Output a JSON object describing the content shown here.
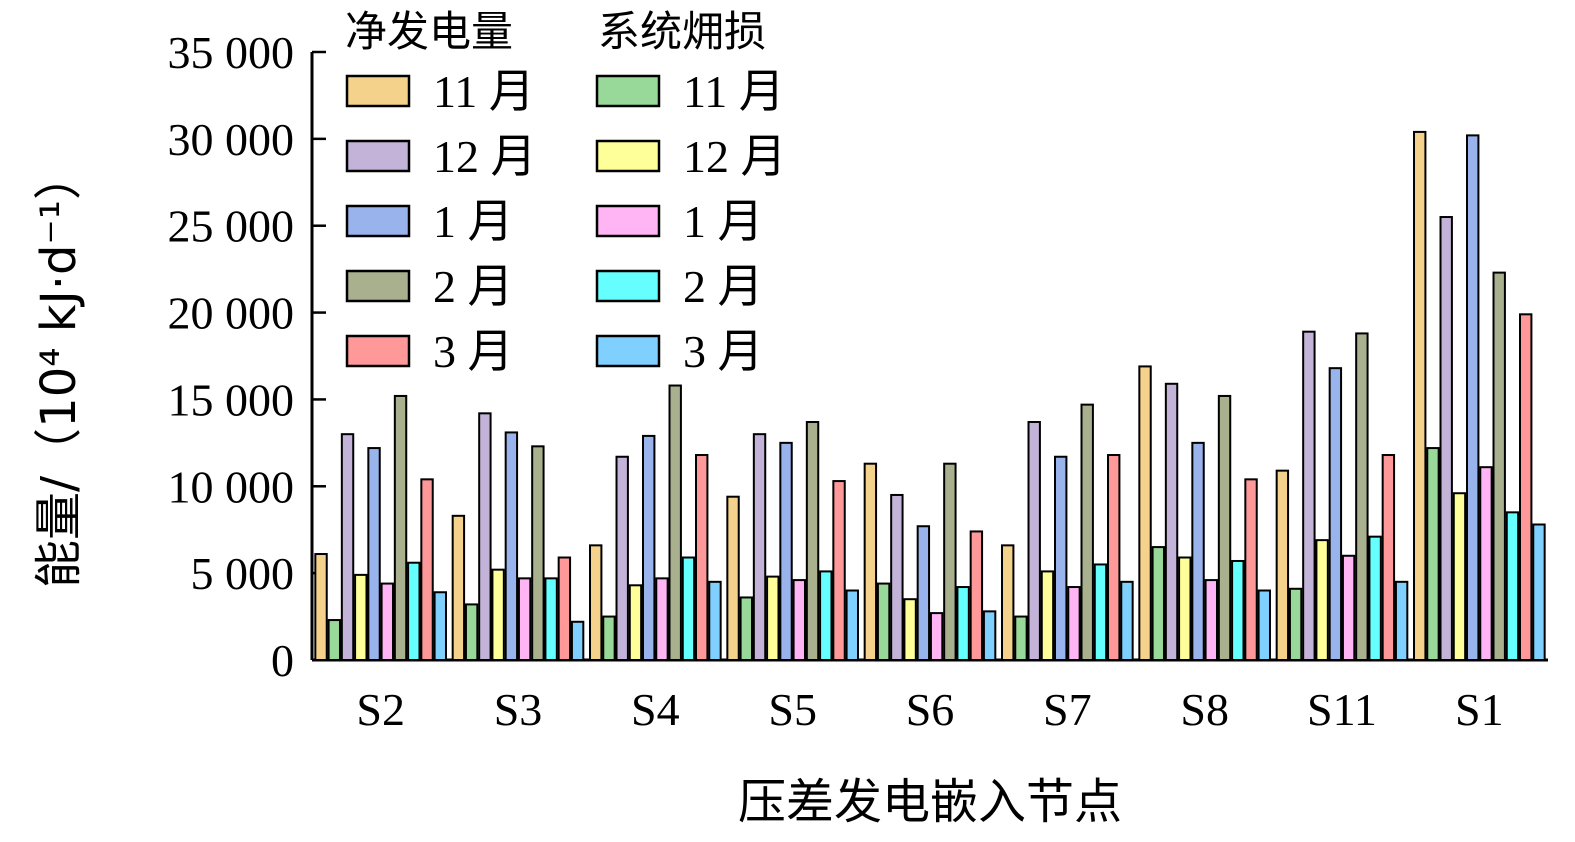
{
  "chart_data": {
    "type": "bar",
    "xlabel": "压差发电嵌入节点",
    "ylabel": "能量/（10⁴ kJ·d⁻¹）",
    "ylim": [
      0,
      35000
    ],
    "yticks": [
      0,
      5000,
      10000,
      15000,
      20000,
      25000,
      30000,
      35000
    ],
    "ytick_labels": [
      "0",
      "5 000",
      "10 000",
      "15 000",
      "20 000",
      "25 000",
      "30 000",
      "35 000"
    ],
    "categories": [
      "S2",
      "S3",
      "S4",
      "S5",
      "S6",
      "S7",
      "S8",
      "S11",
      "S1"
    ],
    "legend": {
      "placement": "top-left",
      "group_titles": [
        "净发电量",
        "系统㶲损"
      ]
    },
    "series": [
      {
        "name": "11 月",
        "group": "净发电量",
        "color": "#F5D28C",
        "values": [
          6100,
          8300,
          6600,
          9400,
          11300,
          6600,
          16900,
          10900,
          30400
        ]
      },
      {
        "name": "11 月",
        "group": "系统㶲损",
        "color": "#98D898",
        "values": [
          2300,
          3200,
          2500,
          3600,
          4400,
          2500,
          6500,
          4100,
          12200
        ]
      },
      {
        "name": "12 月",
        "group": "净发电量",
        "color": "#C3B3D8",
        "values": [
          13000,
          14200,
          11700,
          13000,
          9500,
          13700,
          15900,
          18900,
          25500
        ]
      },
      {
        "name": "12 月",
        "group": "系统㶲损",
        "color": "#FFFF99",
        "values": [
          4900,
          5200,
          4300,
          4800,
          3500,
          5100,
          5900,
          6900,
          9600
        ]
      },
      {
        "name": "1 月",
        "group": "净发电量",
        "color": "#99B4EC",
        "values": [
          12200,
          13100,
          12900,
          12500,
          7700,
          11700,
          12500,
          16800,
          30200
        ]
      },
      {
        "name": "1 月",
        "group": "系统㶲损",
        "color": "#FFB4F4",
        "values": [
          4400,
          4700,
          4700,
          4600,
          2700,
          4200,
          4600,
          6000,
          11100
        ]
      },
      {
        "name": "2 月",
        "group": "净发电量",
        "color": "#A9B08E",
        "values": [
          15200,
          12300,
          15800,
          13700,
          11300,
          14700,
          15200,
          18800,
          22300
        ]
      },
      {
        "name": "2 月",
        "group": "系统㶲损",
        "color": "#66FFFF",
        "values": [
          5600,
          4700,
          5900,
          5100,
          4200,
          5500,
          5700,
          7100,
          8500
        ]
      },
      {
        "name": "3 月",
        "group": "净发电量",
        "color": "#FF9999",
        "values": [
          10400,
          5900,
          11800,
          10300,
          7400,
          11800,
          10400,
          11800,
          19900
        ]
      },
      {
        "name": "3 月",
        "group": "系统㶲损",
        "color": "#80D0FF",
        "values": [
          3900,
          2200,
          4500,
          4000,
          2800,
          4500,
          4000,
          4500,
          7800
        ]
      }
    ]
  }
}
